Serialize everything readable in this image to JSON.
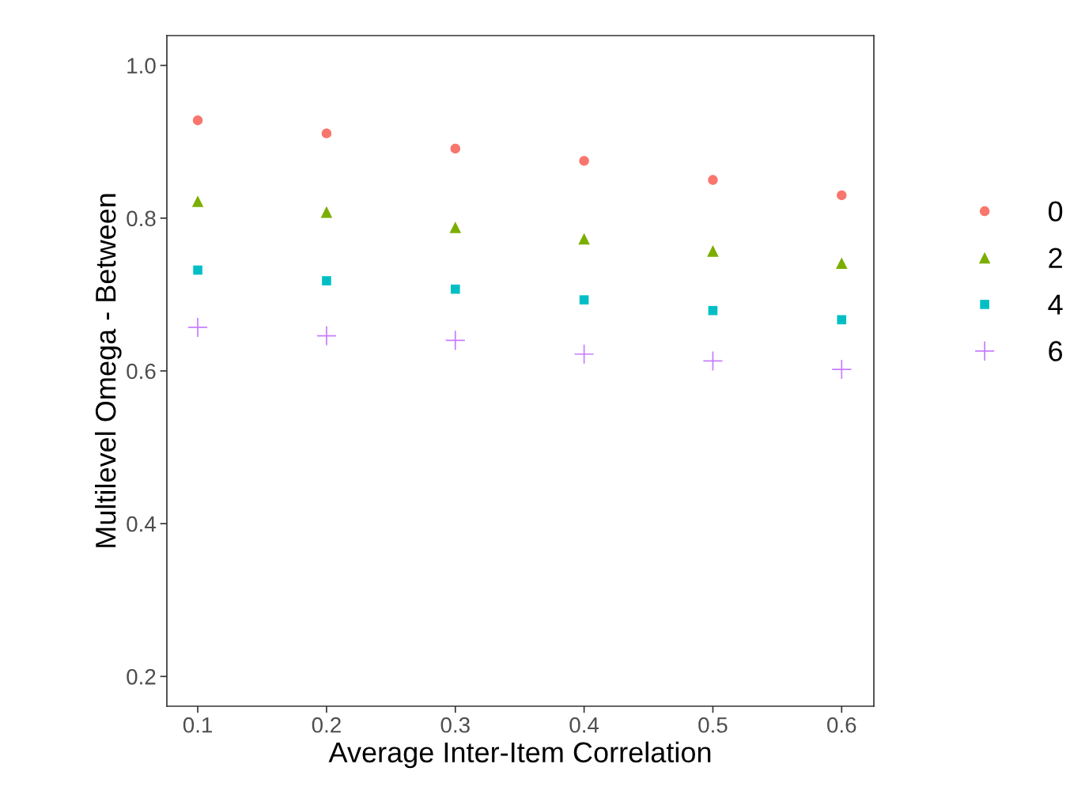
{
  "chart_data": {
    "type": "scatter",
    "xlabel": "Average Inter-Item Correlation",
    "ylabel": "Multilevel Omega - Between",
    "x": [
      0.1,
      0.2,
      0.3,
      0.4,
      0.5,
      0.6
    ],
    "series": [
      {
        "name": "0",
        "color": "#f8766d",
        "marker": "circle",
        "values": [
          0.928,
          0.911,
          0.891,
          0.875,
          0.85,
          0.83
        ]
      },
      {
        "name": "2",
        "color": "#7cae00",
        "marker": "triangle",
        "values": [
          0.822,
          0.808,
          0.788,
          0.773,
          0.757,
          0.741
        ]
      },
      {
        "name": "4",
        "color": "#00bfc4",
        "marker": "square",
        "values": [
          0.732,
          0.718,
          0.707,
          0.693,
          0.679,
          0.667
        ]
      },
      {
        "name": "6",
        "color": "#c77cff",
        "marker": "cross",
        "values": [
          0.657,
          0.646,
          0.64,
          0.622,
          0.613,
          0.602
        ]
      }
    ],
    "xlim": [
      0.076,
      0.625
    ],
    "ylim": [
      0.161,
      1.039
    ],
    "xticks": [
      {
        "value": 0.1,
        "label": "0.1"
      },
      {
        "value": 0.2,
        "label": "0.2"
      },
      {
        "value": 0.3,
        "label": "0.3"
      },
      {
        "value": 0.4,
        "label": "0.4"
      },
      {
        "value": 0.5,
        "label": "0.5"
      },
      {
        "value": 0.6,
        "label": "0.6"
      }
    ],
    "yticks": [
      {
        "value": 0.2,
        "label": "0.2"
      },
      {
        "value": 0.4,
        "label": "0.4"
      },
      {
        "value": 0.6,
        "label": "0.6"
      },
      {
        "value": 0.8,
        "label": "0.8"
      },
      {
        "value": 1.0,
        "label": "1.0"
      }
    ],
    "grid": false,
    "legend": "right"
  }
}
